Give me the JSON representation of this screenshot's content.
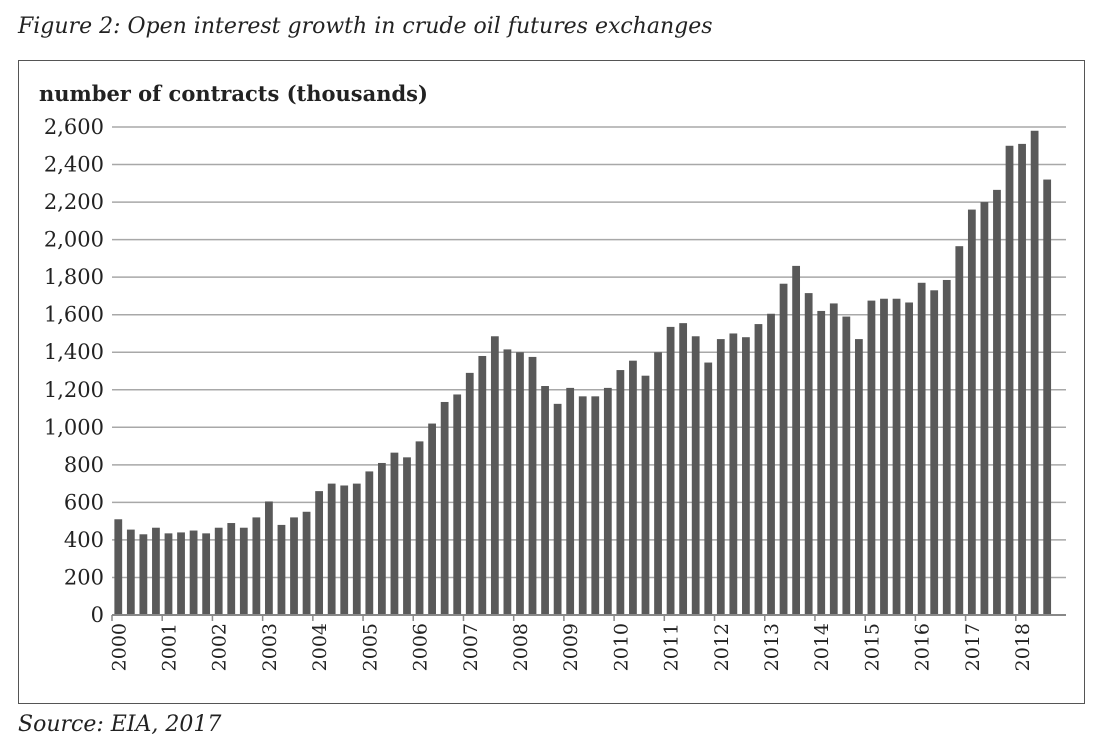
{
  "figure": {
    "title": "Figure 2: Open interest growth in crude oil futures exchanges",
    "source": "Source: EIA, 2017"
  },
  "chart_data": {
    "type": "bar",
    "ylabel": "number of contracts (thousands)",
    "xlabel": "",
    "ylim": [
      0,
      2600
    ],
    "y_ticks": [
      0,
      200,
      400,
      600,
      800,
      1000,
      1200,
      1400,
      1600,
      1800,
      2000,
      2200,
      2400,
      2600
    ],
    "y_tick_labels": [
      "0",
      "200",
      "400",
      "600",
      "800",
      "1,000",
      "1,200",
      "1,400",
      "1,600",
      "1,800",
      "2,000",
      "2,200",
      "2,400",
      "2,600"
    ],
    "x_tick_labels": [
      "2000",
      "2001",
      "2002",
      "2003",
      "2004",
      "2005",
      "2006",
      "2007",
      "2008",
      "2009",
      "2010",
      "2011",
      "2012",
      "2013",
      "2014",
      "2015",
      "2016",
      "2017",
      "2018"
    ],
    "bars_per_year": 4,
    "grid": true,
    "bar_color": "#595959",
    "values": [
      510,
      455,
      430,
      465,
      435,
      440,
      450,
      435,
      465,
      490,
      465,
      520,
      605,
      480,
      520,
      550,
      660,
      700,
      690,
      700,
      765,
      810,
      865,
      840,
      925,
      1020,
      1135,
      1175,
      1290,
      1380,
      1485,
      1415,
      1400,
      1375,
      1220,
      1125,
      1210,
      1165,
      1165,
      1210,
      1305,
      1355,
      1275,
      1400,
      1535,
      1555,
      1485,
      1345,
      1470,
      1500,
      1480,
      1550,
      1605,
      1765,
      1860,
      1715,
      1620,
      1660,
      1590,
      1470,
      1675,
      1685,
      1685,
      1665,
      1770,
      1730,
      1785,
      1965,
      2160,
      2200,
      2265,
      2500,
      2510,
      2580,
      2320
    ]
  }
}
